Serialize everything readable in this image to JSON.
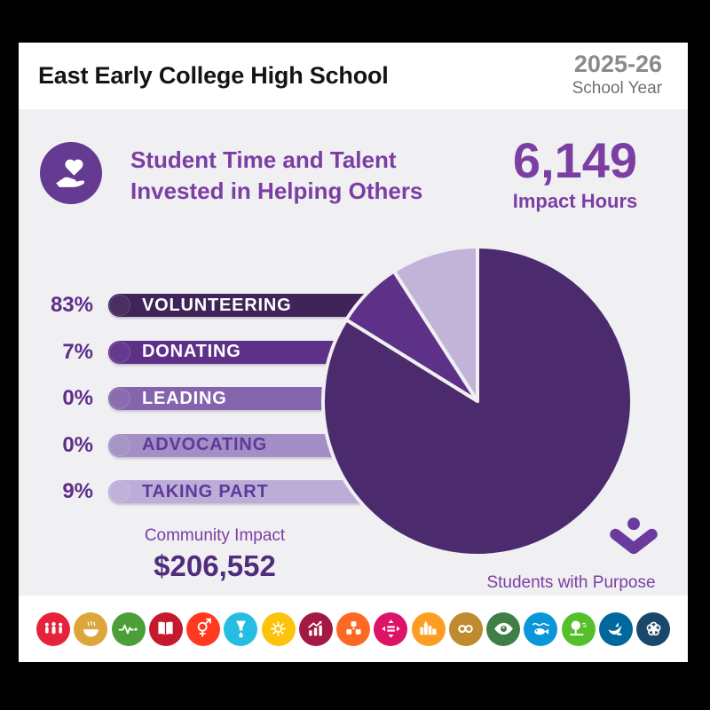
{
  "header": {
    "school_name": "East Early College High School",
    "school_year_value": "2025-26",
    "school_year_label": "School Year"
  },
  "hero": {
    "icon": "heart-in-hand-icon",
    "title_line1": "Student Time and Talent",
    "title_line2": "Invested in Helping Others",
    "impact_hours_value": "6,149",
    "impact_hours_label": "Impact Hours"
  },
  "chart_data": {
    "type": "pie",
    "title": "Student Time and Talent Invested in Helping Others",
    "categories": [
      "VOLUNTEERING",
      "DONATING",
      "LEADING",
      "ADVOCATING",
      "TAKING PART"
    ],
    "values": [
      83,
      7,
      0,
      0,
      9
    ],
    "value_unit": "percent",
    "percent_labels": [
      "83%",
      "7%",
      "0%",
      "0%",
      "9%"
    ],
    "slice_colors": [
      "#4b2a6e",
      "#5e3189",
      "#8465ad",
      "#a390c6",
      "#c2b4d9"
    ],
    "bar_colors": [
      "#3f2359",
      "#5e3189",
      "#8465ad",
      "#a38fc5",
      "#bcadd8"
    ],
    "bar_text_colors": [
      "#ffffff",
      "#ffffff",
      "#ffffff",
      "#5d3a99",
      "#5d3a99"
    ],
    "start_angle_deg": 0,
    "direction": "clockwise",
    "legend_position": "left",
    "gap_color": "#f0eff2"
  },
  "community_impact": {
    "label": "Community Impact",
    "value": "$206,552"
  },
  "branding": {
    "logo": "students-with-purpose-logo",
    "label": "Students with Purpose"
  },
  "footer": {
    "sdg_icons": [
      {
        "name": "sdg-no-poverty",
        "glyph": "people",
        "color": "#E5243B"
      },
      {
        "name": "sdg-zero-hunger",
        "glyph": "bowl",
        "color": "#DDA63A"
      },
      {
        "name": "sdg-good-health",
        "glyph": "ecg-heart",
        "color": "#4C9F38"
      },
      {
        "name": "sdg-quality-education",
        "glyph": "book",
        "color": "#C5192D"
      },
      {
        "name": "sdg-gender-equality",
        "glyph": "gender",
        "color": "#FF3A21"
      },
      {
        "name": "sdg-clean-water",
        "glyph": "water",
        "color": "#26BDE2"
      },
      {
        "name": "sdg-clean-energy",
        "glyph": "sun",
        "color": "#FCC30B"
      },
      {
        "name": "sdg-decent-work",
        "glyph": "growth-chart",
        "color": "#A21942"
      },
      {
        "name": "sdg-industry-innovation",
        "glyph": "cubes",
        "color": "#FD6925"
      },
      {
        "name": "sdg-reduced-inequalities",
        "glyph": "equality-arrows",
        "color": "#DD1367"
      },
      {
        "name": "sdg-sustainable-cities",
        "glyph": "buildings",
        "color": "#FD9D24"
      },
      {
        "name": "sdg-responsible-consumption",
        "glyph": "infinity",
        "color": "#BF8B2E"
      },
      {
        "name": "sdg-climate-action",
        "glyph": "eye-globe",
        "color": "#3F7E44"
      },
      {
        "name": "sdg-life-below-water",
        "glyph": "fish-waves",
        "color": "#0A97D9"
      },
      {
        "name": "sdg-life-on-land",
        "glyph": "tree-birds",
        "color": "#56C02B"
      },
      {
        "name": "sdg-peace-justice",
        "glyph": "dove",
        "color": "#00689D"
      },
      {
        "name": "sdg-partnerships",
        "glyph": "rings",
        "color": "#19486A"
      }
    ]
  },
  "colors": {
    "card_bg": "#f0eff2",
    "header_bg": "#ffffff",
    "brand_purple": "#7b3fa4",
    "dark_purple": "#4f2c7c",
    "percent_label": "#5e2d8c",
    "hero_icon_bg": "#653a92",
    "logo_purple": "#6a3a9c",
    "year_gray": "#8b8b8d",
    "year_label_gray": "#717175",
    "school_name_color": "#141414"
  }
}
